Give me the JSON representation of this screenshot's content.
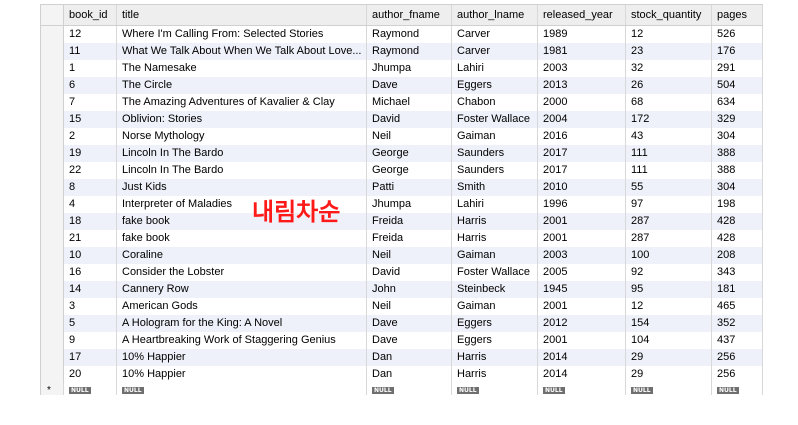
{
  "columns": [
    "book_id",
    "title",
    "author_fname",
    "author_lname",
    "released_year",
    "stock_quantity",
    "pages"
  ],
  "rows": [
    [
      "12",
      "Where I'm Calling From: Selected Stories",
      "Raymond",
      "Carver",
      "1989",
      "12",
      "526"
    ],
    [
      "11",
      "What We Talk About When We Talk About Love...",
      "Raymond",
      "Carver",
      "1981",
      "23",
      "176"
    ],
    [
      "1",
      "The Namesake",
      "Jhumpa",
      "Lahiri",
      "2003",
      "32",
      "291"
    ],
    [
      "6",
      "The Circle",
      "Dave",
      "Eggers",
      "2013",
      "26",
      "504"
    ],
    [
      "7",
      "The Amazing Adventures of Kavalier & Clay",
      "Michael",
      "Chabon",
      "2000",
      "68",
      "634"
    ],
    [
      "15",
      "Oblivion: Stories",
      "David",
      "Foster Wallace",
      "2004",
      "172",
      "329"
    ],
    [
      "2",
      "Norse Mythology",
      "Neil",
      "Gaiman",
      "2016",
      "43",
      "304"
    ],
    [
      "19",
      "Lincoln In The Bardo",
      "George",
      "Saunders",
      "2017",
      "111",
      "388"
    ],
    [
      "22",
      "Lincoln In The Bardo",
      "George",
      "Saunders",
      "2017",
      "111",
      "388"
    ],
    [
      "8",
      "Just Kids",
      "Patti",
      "Smith",
      "2010",
      "55",
      "304"
    ],
    [
      "4",
      "Interpreter of Maladies",
      "Jhumpa",
      "Lahiri",
      "1996",
      "97",
      "198"
    ],
    [
      "18",
      "fake book",
      "Freida",
      "Harris",
      "2001",
      "287",
      "428"
    ],
    [
      "21",
      "fake book",
      "Freida",
      "Harris",
      "2001",
      "287",
      "428"
    ],
    [
      "10",
      "Coraline",
      "Neil",
      "Gaiman",
      "2003",
      "100",
      "208"
    ],
    [
      "16",
      "Consider the Lobster",
      "David",
      "Foster Wallace",
      "2005",
      "92",
      "343"
    ],
    [
      "14",
      "Cannery Row",
      "John",
      "Steinbeck",
      "1945",
      "95",
      "181"
    ],
    [
      "3",
      "American Gods",
      "Neil",
      "Gaiman",
      "2001",
      "12",
      "465"
    ],
    [
      "5",
      "A Hologram for the King: A Novel",
      "Dave",
      "Eggers",
      "2012",
      "154",
      "352"
    ],
    [
      "9",
      "A Heartbreaking Work of Staggering Genius",
      "Dave",
      "Eggers",
      "2001",
      "104",
      "437"
    ],
    [
      "17",
      "10% Happier",
      "Dan",
      "Harris",
      "2014",
      "29",
      "256"
    ],
    [
      "20",
      "10% Happier",
      "Dan",
      "Harris",
      "2014",
      "29",
      "256"
    ]
  ],
  "null_label": "NULL",
  "new_row_marker": "*",
  "overlay_text": "내림차순"
}
